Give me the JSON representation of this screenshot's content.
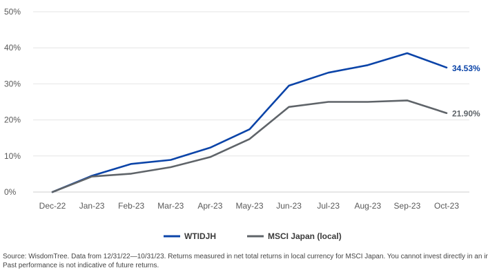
{
  "chart_data": {
    "type": "line",
    "categories": [
      "Dec-22",
      "Jan-23",
      "Feb-23",
      "Mar-23",
      "Apr-23",
      "May-23",
      "Jun-23",
      "Jul-23",
      "Aug-23",
      "Sep-23",
      "Oct-23"
    ],
    "series": [
      {
        "name": "WTIDJH",
        "color": "#0b44a8",
        "values": [
          0,
          4.5,
          7.8,
          8.9,
          12.3,
          17.4,
          29.5,
          33.1,
          35.2,
          38.5,
          34.53
        ],
        "end_label": "34.53%"
      },
      {
        "name": "MSCI Japan (local)",
        "color": "#5f6469",
        "values": [
          0,
          4.3,
          5.1,
          6.9,
          9.7,
          14.7,
          23.6,
          25.0,
          25.0,
          25.4,
          21.9
        ],
        "end_label": "21.90%"
      }
    ],
    "yticks": [
      "0%",
      "10%",
      "20%",
      "30%",
      "40%",
      "50%"
    ],
    "ylim": [
      0,
      50
    ],
    "grid": true,
    "legend": "bottom-center"
  },
  "footnote": {
    "line1": "Source: WisdomTree. Data from 12/31/22—10/31/23. Returns measured in net total returns in local currency for MSCI Japan. You cannot invest directly in an index.",
    "line2": "Past performance is not indicative of future returns."
  }
}
